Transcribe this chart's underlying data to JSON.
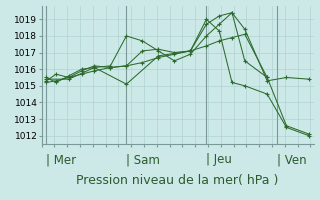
{
  "background_color": "#cce9e8",
  "grid_color": "#aed4d2",
  "line_color": "#2d6a2d",
  "marker_color": "#2d6a2d",
  "ylabel_ticks": [
    1012,
    1013,
    1014,
    1015,
    1016,
    1017,
    1018,
    1019
  ],
  "ylim": [
    1011.5,
    1019.8
  ],
  "xlim": [
    -0.15,
    8.35
  ],
  "xlabel": "Pression niveau de la mer( hPa )",
  "day_labels": [
    "| Mer",
    "| Sam",
    "| Jeu",
    "| Ven"
  ],
  "day_positions": [
    0.0,
    2.5,
    5.0,
    7.2
  ],
  "series": [
    {
      "x": [
        0.0,
        0.3,
        0.7,
        1.1,
        1.5,
        2.0,
        2.5,
        3.0,
        3.5,
        4.0,
        4.5,
        5.0,
        5.4,
        5.8,
        6.2,
        6.9,
        7.5,
        8.2
      ],
      "y": [
        1015.3,
        1015.7,
        1015.5,
        1015.9,
        1016.2,
        1016.1,
        1016.2,
        1017.1,
        1017.2,
        1017.0,
        1017.1,
        1018.7,
        1019.2,
        1019.4,
        1018.4,
        1015.3,
        1015.5,
        1015.4
      ]
    },
    {
      "x": [
        0.0,
        0.3,
        0.7,
        1.1,
        1.5,
        2.0,
        2.5,
        3.0,
        3.5,
        4.0,
        4.5,
        5.0,
        5.4,
        5.8,
        6.2,
        6.9,
        7.5,
        8.2
      ],
      "y": [
        1015.2,
        1015.3,
        1015.5,
        1015.7,
        1015.9,
        1016.1,
        1016.2,
        1016.4,
        1016.7,
        1016.9,
        1017.1,
        1017.4,
        1017.7,
        1017.9,
        1018.1,
        1015.5,
        1012.6,
        1012.1
      ]
    },
    {
      "x": [
        0.0,
        0.3,
        0.7,
        1.1,
        1.5,
        2.0,
        2.5,
        3.0,
        3.5,
        4.0,
        4.5,
        5.0,
        5.4,
        5.8,
        6.2,
        6.9
      ],
      "y": [
        1015.5,
        1015.2,
        1015.6,
        1016.0,
        1016.1,
        1016.2,
        1018.0,
        1017.7,
        1017.1,
        1016.5,
        1016.9,
        1018.0,
        1018.7,
        1019.4,
        1016.5,
        1015.5
      ]
    },
    {
      "x": [
        0.0,
        0.7,
        1.5,
        2.5,
        3.5,
        4.5,
        5.0,
        5.4,
        5.8,
        6.2,
        6.9,
        7.5,
        8.2
      ],
      "y": [
        1015.4,
        1015.4,
        1016.1,
        1015.1,
        1016.8,
        1017.1,
        1019.0,
        1018.3,
        1015.2,
        1015.0,
        1014.5,
        1012.5,
        1012.0
      ]
    }
  ],
  "vlines_x": [
    0.0,
    2.5,
    5.0,
    7.2
  ],
  "vline_color": "#7a9a9a",
  "xtick_spacing": 0.4,
  "tick_fontsize": 6.5,
  "label_fontsize": 8.5
}
